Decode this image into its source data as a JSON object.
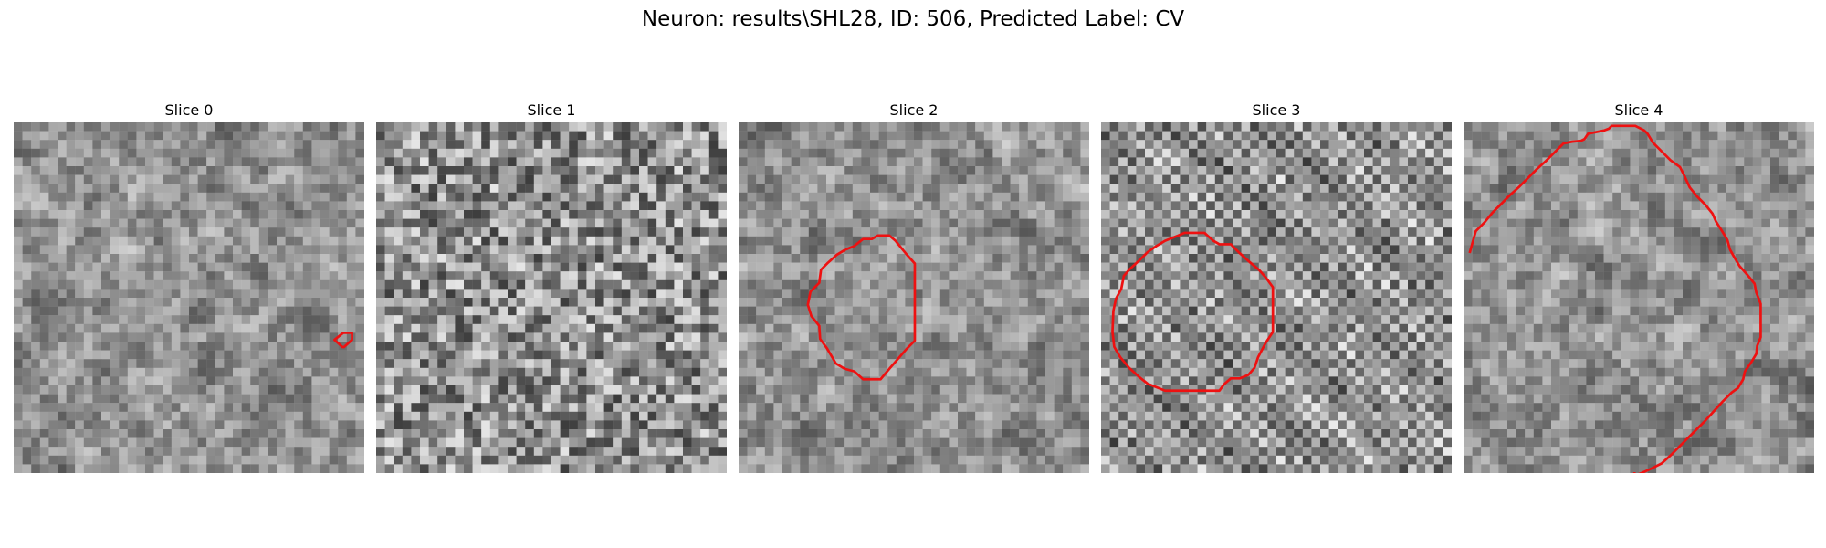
{
  "figure": {
    "title": "Neuron: results\\SHL28, ID: 506, Predicted Label: CV",
    "outline_color": "#ee1111"
  },
  "panels": [
    {
      "title": "Slice 0",
      "seed": 11,
      "texture": "smooth",
      "contour": [
        [
          37.6,
          25.7
        ],
        [
          36.6,
          24.8
        ],
        [
          37.6,
          24.0
        ],
        [
          38.6,
          24.0
        ],
        [
          38.6,
          24.8
        ],
        [
          37.6,
          25.7
        ]
      ]
    },
    {
      "title": "Slice 1",
      "seed": 23,
      "texture": "noisy",
      "contour": []
    },
    {
      "title": "Slice 2",
      "seed": 37,
      "texture": "smooth",
      "contour": [
        [
          13.2,
          14.1
        ],
        [
          14.2,
          13.3
        ],
        [
          15.2,
          13.3
        ],
        [
          15.9,
          12.9
        ],
        [
          17.2,
          12.9
        ],
        [
          17.9,
          13.5
        ],
        [
          19.2,
          15.1
        ],
        [
          20.1,
          16.1
        ],
        [
          20.1,
          24.9
        ],
        [
          19.2,
          25.8
        ],
        [
          17.2,
          28.1
        ],
        [
          16.2,
          29.3
        ],
        [
          14.2,
          29.3
        ],
        [
          13.2,
          28.4
        ],
        [
          12.1,
          28.1
        ],
        [
          11.1,
          27.5
        ],
        [
          10.1,
          25.8
        ],
        [
          9.3,
          24.7
        ],
        [
          9.2,
          23.2
        ],
        [
          8.3,
          22.1
        ],
        [
          7.9,
          20.8
        ],
        [
          8.2,
          19.3
        ],
        [
          9.2,
          18.3
        ],
        [
          9.4,
          16.8
        ],
        [
          10.2,
          16.0
        ],
        [
          11.2,
          15.1
        ],
        [
          12.2,
          14.5
        ],
        [
          13.2,
          14.1
        ]
      ]
    },
    {
      "title": "Slice 3",
      "seed": 53,
      "texture": "checker",
      "contour": [
        [
          8.8,
          12.9
        ],
        [
          9.5,
          12.6
        ],
        [
          11.8,
          12.6
        ],
        [
          12.8,
          13.5
        ],
        [
          13.5,
          13.9
        ],
        [
          14.8,
          13.9
        ],
        [
          15.8,
          14.9
        ],
        [
          16.8,
          15.8
        ],
        [
          18.0,
          16.8
        ],
        [
          18.8,
          17.7
        ],
        [
          19.6,
          18.8
        ],
        [
          19.6,
          23.9
        ],
        [
          18.8,
          25.1
        ],
        [
          17.9,
          26.8
        ],
        [
          17.5,
          28.0
        ],
        [
          16.8,
          28.8
        ],
        [
          15.8,
          29.2
        ],
        [
          14.8,
          29.2
        ],
        [
          14.0,
          29.9
        ],
        [
          13.5,
          30.6
        ],
        [
          7.3,
          30.6
        ],
        [
          6.3,
          30.2
        ],
        [
          5.3,
          29.8
        ],
        [
          4.3,
          29.0
        ],
        [
          3.2,
          28.0
        ],
        [
          2.2,
          26.8
        ],
        [
          1.5,
          25.6
        ],
        [
          1.3,
          23.9
        ],
        [
          1.4,
          21.5
        ],
        [
          1.7,
          20.1
        ],
        [
          2.3,
          19.0
        ],
        [
          2.6,
          17.5
        ],
        [
          3.3,
          16.7
        ],
        [
          4.3,
          15.8
        ],
        [
          5.3,
          14.8
        ],
        [
          6.3,
          14.1
        ],
        [
          7.3,
          13.5
        ],
        [
          8.8,
          12.9
        ]
      ]
    },
    {
      "title": "Slice 4",
      "seed": 71,
      "texture": "smooth",
      "contour": [
        [
          0.7,
          14.9
        ],
        [
          1.0,
          13.8
        ],
        [
          1.4,
          12.4
        ],
        [
          2.4,
          11.4
        ],
        [
          3.3,
          10.3
        ],
        [
          4.2,
          9.4
        ],
        [
          5.4,
          8.2
        ],
        [
          6.4,
          7.3
        ],
        [
          7.4,
          6.3
        ],
        [
          8.4,
          5.3
        ],
        [
          9.4,
          4.4
        ],
        [
          10.4,
          3.4
        ],
        [
          11.4,
          2.4
        ],
        [
          12.4,
          2.2
        ],
        [
          13.4,
          2.1
        ],
        [
          13.8,
          1.9
        ],
        [
          14.2,
          1.3
        ],
        [
          16.1,
          0.9
        ],
        [
          16.6,
          0.7
        ],
        [
          16.9,
          0.4
        ],
        [
          18.6,
          0.4
        ],
        [
          19.6,
          0.4
        ],
        [
          20.6,
          0.9
        ],
        [
          21.0,
          1.3
        ],
        [
          21.6,
          2.3
        ],
        [
          22.6,
          3.3
        ],
        [
          23.6,
          4.3
        ],
        [
          24.7,
          5.1
        ],
        [
          25.2,
          6.1
        ],
        [
          25.8,
          7.4
        ],
        [
          26.6,
          8.4
        ],
        [
          27.6,
          9.4
        ],
        [
          28.4,
          10.4
        ],
        [
          28.8,
          11.3
        ],
        [
          29.5,
          12.4
        ],
        [
          30.1,
          13.4
        ],
        [
          30.4,
          14.5
        ],
        [
          30.9,
          15.4
        ],
        [
          31.5,
          16.4
        ],
        [
          32.4,
          17.4
        ],
        [
          33.2,
          18.4
        ],
        [
          33.4,
          19.4
        ],
        [
          33.9,
          20.7
        ],
        [
          33.9,
          22.4
        ],
        [
          33.9,
          23.4
        ],
        [
          33.9,
          24.5
        ],
        [
          33.5,
          25.5
        ],
        [
          33.4,
          26.4
        ],
        [
          32.8,
          27.4
        ],
        [
          32.1,
          28.4
        ],
        [
          31.9,
          29.3
        ],
        [
          31.3,
          30.3
        ],
        [
          30.6,
          30.8
        ],
        [
          29.6,
          31.8
        ],
        [
          28.6,
          32.9
        ],
        [
          27.6,
          34.0
        ],
        [
          26.6,
          35.0
        ],
        [
          25.6,
          36.0
        ],
        [
          24.6,
          37.0
        ],
        [
          23.6,
          38.0
        ],
        [
          22.6,
          38.9
        ],
        [
          21.4,
          39.5
        ],
        [
          20.3,
          40.0
        ],
        [
          19.5,
          40.3
        ],
        [
          19.5,
          39.9
        ]
      ]
    }
  ]
}
